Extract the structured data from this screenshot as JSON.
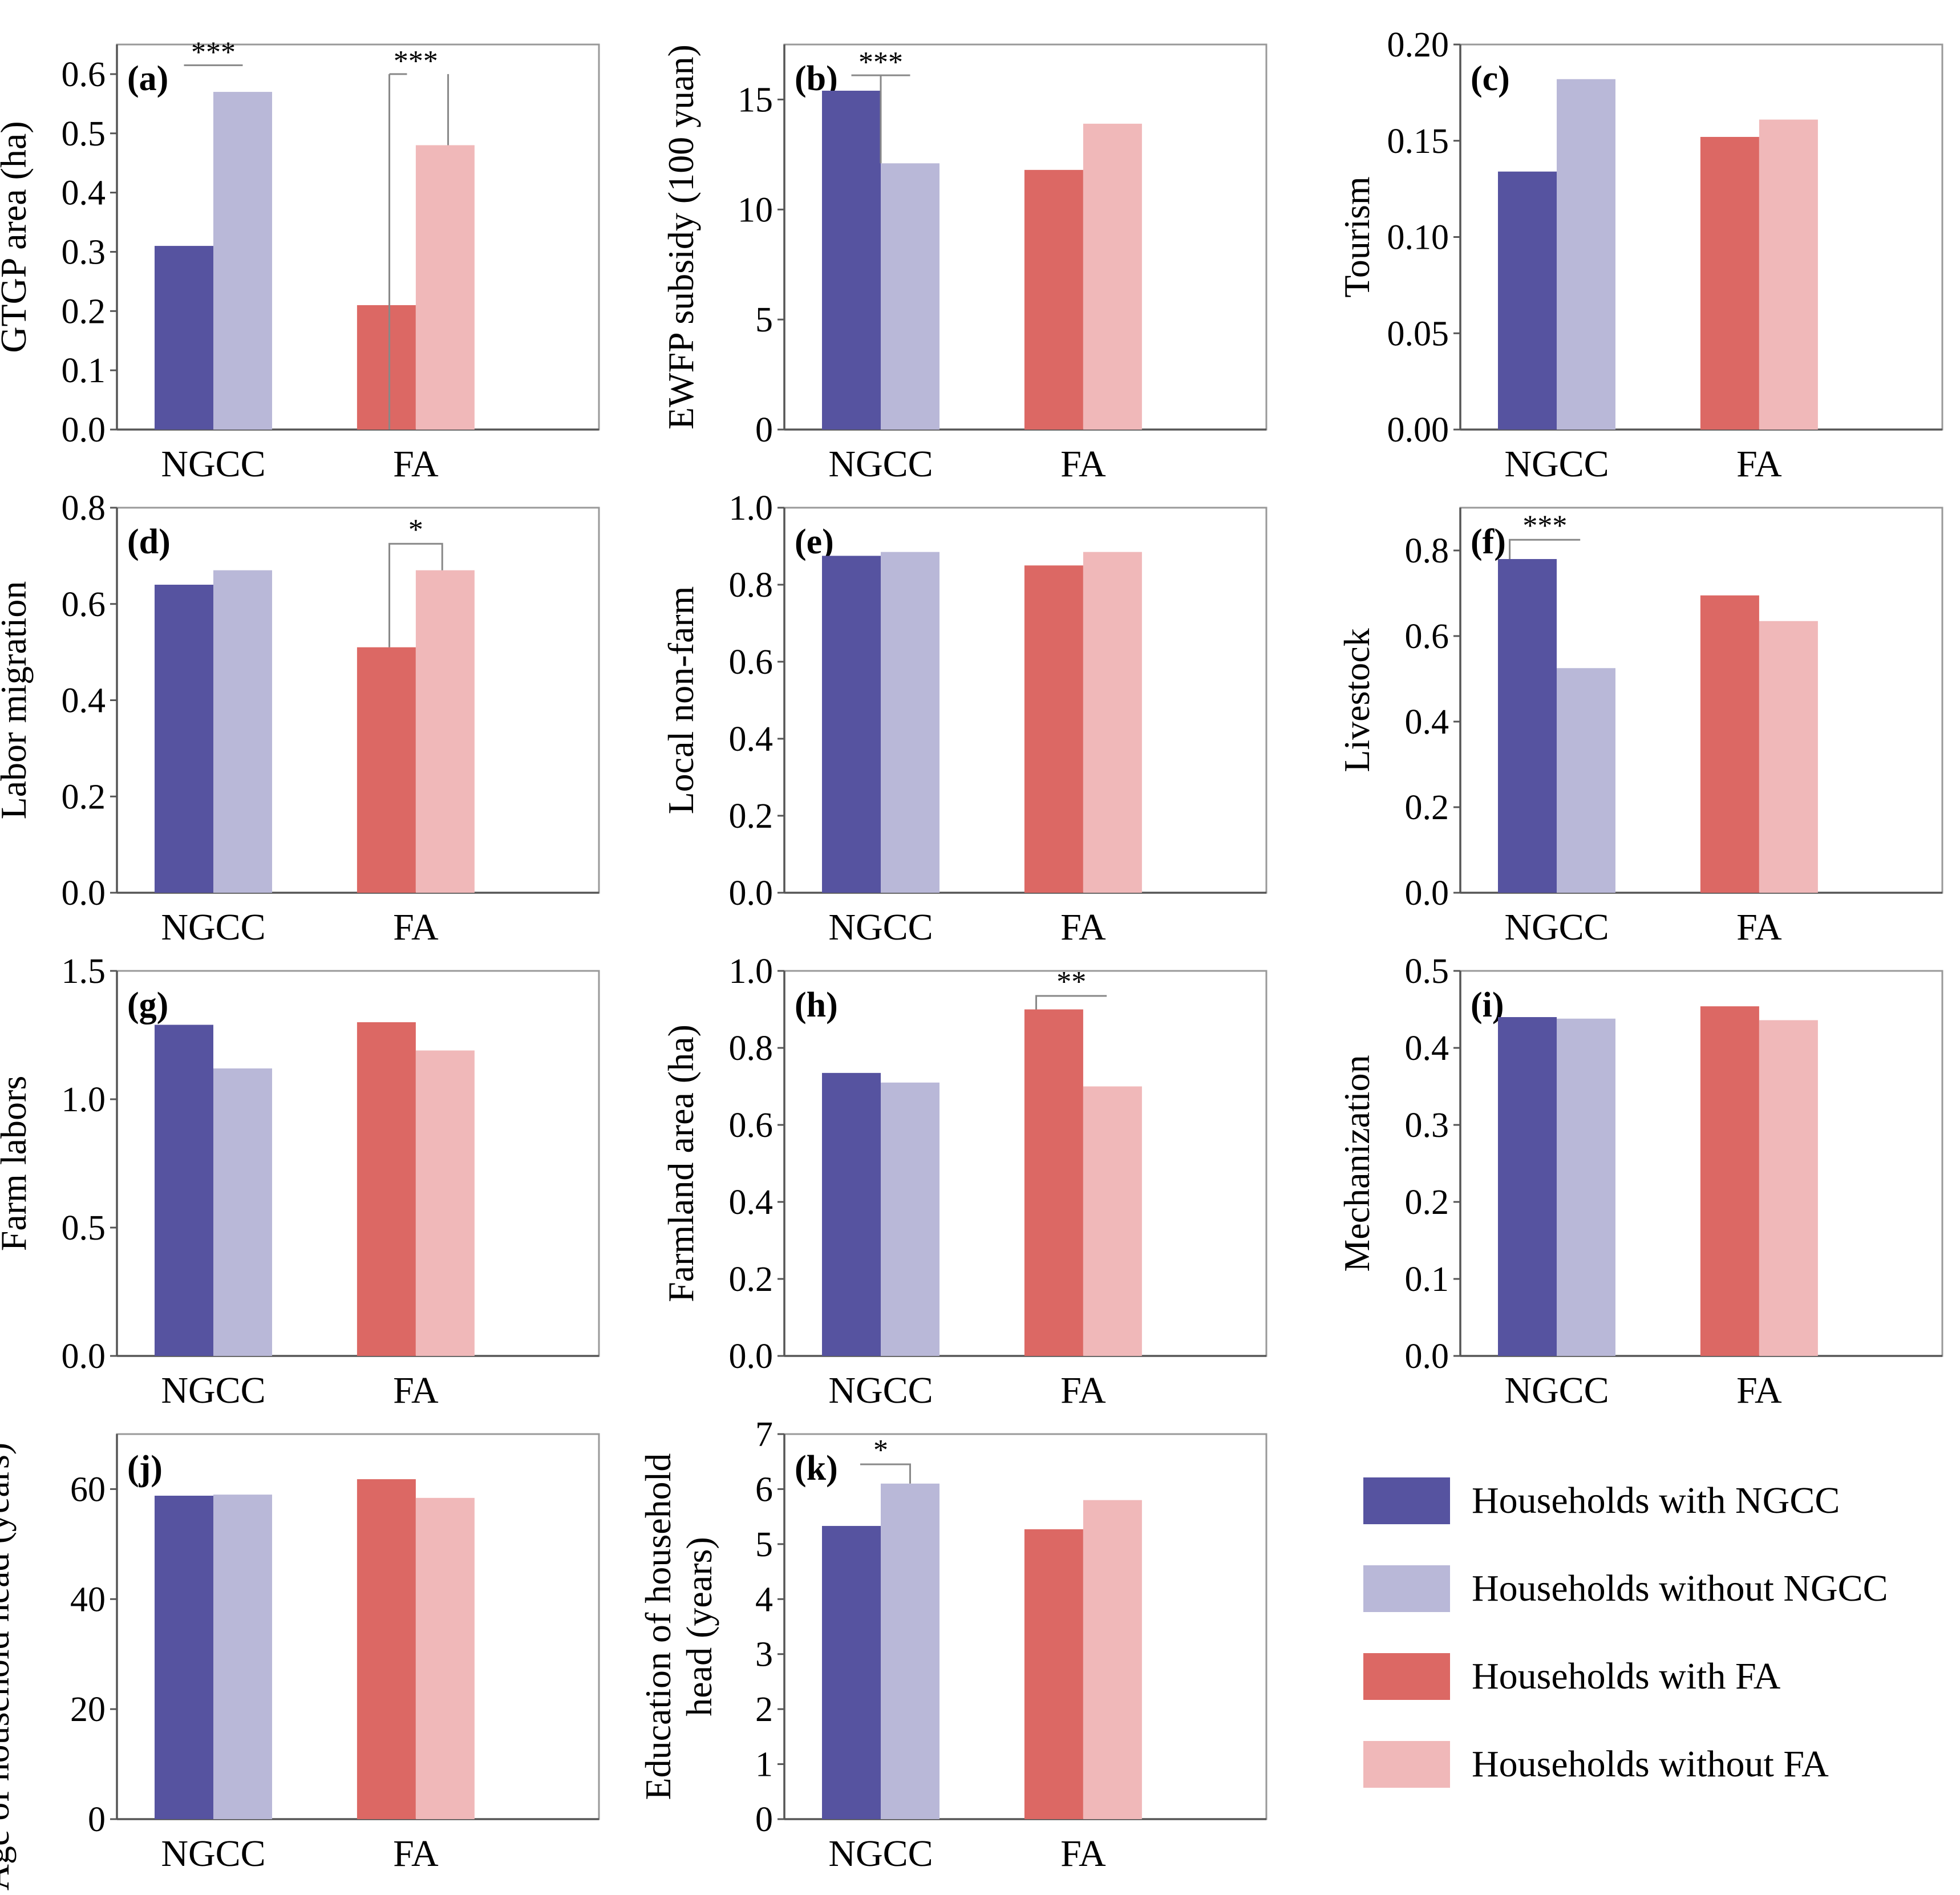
{
  "chart_data": {
    "type": "bar",
    "categories": [
      "NGCC",
      "FA"
    ],
    "series_names": [
      "Households with NGCC",
      "Households without NGCC",
      "Households with FA",
      "Households without FA"
    ],
    "colors": {
      "with_ngcc": "#5653a0",
      "without_ngcc": "#b9b8d8",
      "with_fa": "#dc6864",
      "without_fa": "#f0b8b9"
    },
    "legend": {
      "position": "bottom-right",
      "entries": [
        {
          "label": "Households with NGCC",
          "color": "#5653a0"
        },
        {
          "label": "Households without NGCC",
          "color": "#b9b8d8"
        },
        {
          "label": "Households with FA",
          "color": "#dc6864"
        },
        {
          "label": "Households without FA",
          "color": "#f0b8b9"
        }
      ]
    },
    "panels": [
      {
        "label": "(a)",
        "ylabel": "GTGP area (ha)",
        "ylim": [
          0,
          0.65
        ],
        "yticks": [
          "0.0",
          "0.1",
          "0.2",
          "0.3",
          "0.4",
          "0.5",
          "0.6"
        ],
        "values": [
          [
            0.31,
            0.57
          ],
          [
            0.21,
            0.48
          ]
        ],
        "significance": [
          {
            "group": 0,
            "text": "***",
            "style": "flat",
            "level": 0.615
          },
          {
            "group": 1,
            "text": "***",
            "style": "whisker",
            "from": 0.0,
            "to": 0.6
          }
        ]
      },
      {
        "label": "(b)",
        "ylabel": "EWFP subsidy (100 yuan)",
        "ylim": [
          0,
          17.5
        ],
        "yticks": [
          "0",
          "5",
          "10",
          "15"
        ],
        "values": [
          [
            15.4,
            12.1
          ],
          [
            11.8,
            13.9
          ]
        ],
        "significance": [
          {
            "group": 0,
            "text": "***",
            "style": "whisker",
            "from": 15.4,
            "to": 16.1
          }
        ]
      },
      {
        "label": "(c)",
        "ylabel": "Tourism",
        "ylim": [
          0,
          0.2
        ],
        "yticks": [
          "0.00",
          "0.05",
          "0.10",
          "0.15",
          "0.20"
        ],
        "values": [
          [
            0.134,
            0.182
          ],
          [
            0.152,
            0.161
          ]
        ],
        "significance": []
      },
      {
        "label": "(d)",
        "ylabel": "Labor migration",
        "ylim": [
          0,
          0.8
        ],
        "yticks": [
          "0.0",
          "0.2",
          "0.4",
          "0.6",
          "0.8"
        ],
        "values": [
          [
            0.64,
            0.67
          ],
          [
            0.51,
            0.67
          ]
        ],
        "significance": [
          {
            "group": 1,
            "text": "*",
            "style": "bracket",
            "level": 0.725
          }
        ]
      },
      {
        "label": "(e)",
        "ylabel": "Local non-farm",
        "ylim": [
          0,
          1.0
        ],
        "yticks": [
          "0.0",
          "0.2",
          "0.4",
          "0.6",
          "0.8",
          "1.0"
        ],
        "values": [
          [
            0.875,
            0.885
          ],
          [
            0.85,
            0.885
          ]
        ],
        "significance": []
      },
      {
        "label": "(f)",
        "ylabel": "Livestock",
        "ylim": [
          0,
          0.9
        ],
        "yticks": [
          "0.0",
          "0.2",
          "0.4",
          "0.6",
          "0.8"
        ],
        "values": [
          [
            0.78,
            0.525
          ],
          [
            0.695,
            0.635
          ]
        ],
        "significance": [
          {
            "group": 0,
            "text": "***",
            "style": "left",
            "level": 0.825
          }
        ]
      },
      {
        "label": "(g)",
        "ylabel": "Farm labors",
        "ylim": [
          0,
          1.5
        ],
        "yticks": [
          "0.0",
          "0.5",
          "1.0",
          "1.5"
        ],
        "values": [
          [
            1.29,
            1.12
          ],
          [
            1.3,
            1.19
          ]
        ],
        "significance": []
      },
      {
        "label": "(h)",
        "ylabel": "Farmland area (ha)",
        "ylim": [
          0,
          1.0
        ],
        "yticks": [
          "0.0",
          "0.2",
          "0.4",
          "0.6",
          "0.8",
          "1.0"
        ],
        "values": [
          [
            0.735,
            0.71
          ],
          [
            0.9,
            0.7
          ]
        ],
        "significance": [
          {
            "group": 1,
            "text": "**",
            "style": "left",
            "level": 0.935
          }
        ]
      },
      {
        "label": "(i)",
        "ylabel": "Mechanization",
        "ylim": [
          0,
          0.5
        ],
        "yticks": [
          "0.0",
          "0.1",
          "0.2",
          "0.3",
          "0.4",
          "0.5"
        ],
        "values": [
          [
            0.44,
            0.438
          ],
          [
            0.454,
            0.436
          ]
        ],
        "significance": []
      },
      {
        "label": "(j)",
        "ylabel": "Age of household head (years)",
        "ylim": [
          0,
          70
        ],
        "yticks": [
          "0",
          "20",
          "40",
          "60"
        ],
        "values": [
          [
            58.8,
            59.0
          ],
          [
            61.8,
            58.4
          ]
        ],
        "significance": []
      },
      {
        "label": "(k)",
        "ylabel": "Education of household head (years)",
        "ylim": [
          0,
          7
        ],
        "yticks": [
          "0",
          "1",
          "2",
          "3",
          "4",
          "5",
          "6",
          "7"
        ],
        "values": [
          [
            5.33,
            6.1
          ],
          [
            5.27,
            5.8
          ]
        ],
        "significance": [
          {
            "group": 0,
            "text": "*",
            "style": "right",
            "level": 6.45
          }
        ]
      }
    ]
  }
}
